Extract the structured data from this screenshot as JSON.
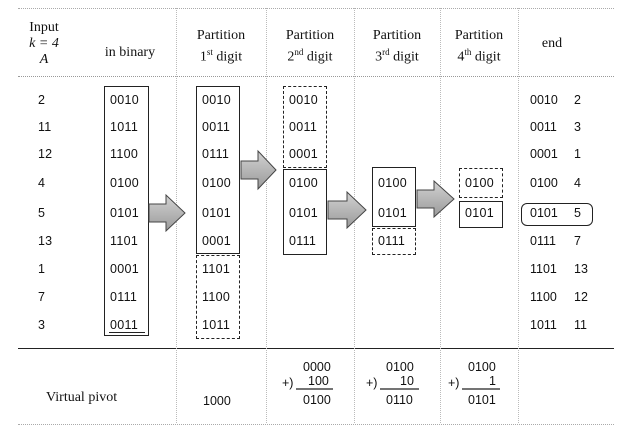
{
  "headers": {
    "input_line1": "Input",
    "input_line2": "k = 4",
    "input_line3": "A",
    "binary": "in binary",
    "p1_line1": "Partition",
    "p1_ord": "1",
    "p1_sup": "st",
    "p1_tail": " digit",
    "p2_line1": "Partition",
    "p2_ord": "2",
    "p2_sup": "nd",
    "p2_tail": " digit",
    "p3_line1": "Partition",
    "p3_ord": "3",
    "p3_sup": "rd",
    "p3_tail": " digit",
    "p4_line1": "Partition",
    "p4_ord": "4",
    "p4_sup": "th",
    "p4_tail": " digit",
    "end": "end"
  },
  "inputs": [
    "2",
    "11",
    "12",
    "4",
    "5",
    "13",
    "1",
    "7",
    "3"
  ],
  "binary": [
    "0010",
    "1011",
    "1100",
    "0100",
    "0101",
    "1101",
    "0001",
    "0111",
    "0011"
  ],
  "partition1": [
    "0010",
    "0011",
    "0111",
    "0100",
    "0101",
    "0001",
    "1101",
    "1100",
    "1011"
  ],
  "partition2": [
    "0010",
    "0011",
    "0001",
    "0100",
    "0101",
    "0111"
  ],
  "partition3": [
    "0100",
    "0101",
    "0111"
  ],
  "partition4": [
    "0100",
    "0101"
  ],
  "end": [
    {
      "bin": "0010",
      "dec": "2"
    },
    {
      "bin": "0011",
      "dec": "3"
    },
    {
      "bin": "0001",
      "dec": "1"
    },
    {
      "bin": "0100",
      "dec": "4"
    },
    {
      "bin": "0101",
      "dec": "5"
    },
    {
      "bin": "0111",
      "dec": "7"
    },
    {
      "bin": "1101",
      "dec": "13"
    },
    {
      "bin": "1100",
      "dec": "12"
    },
    {
      "bin": "1011",
      "dec": "11"
    }
  ],
  "virtual_pivot": {
    "label": "Virtual pivot",
    "p1": "1000",
    "p2_top": "0000",
    "p2_add": "100",
    "p2_res": "0100",
    "p3_top": "0100",
    "p3_add": "10",
    "p3_res": "0110",
    "p4_top": "0100",
    "p4_add": "1",
    "p4_res": "0101",
    "plus": "+)"
  }
}
